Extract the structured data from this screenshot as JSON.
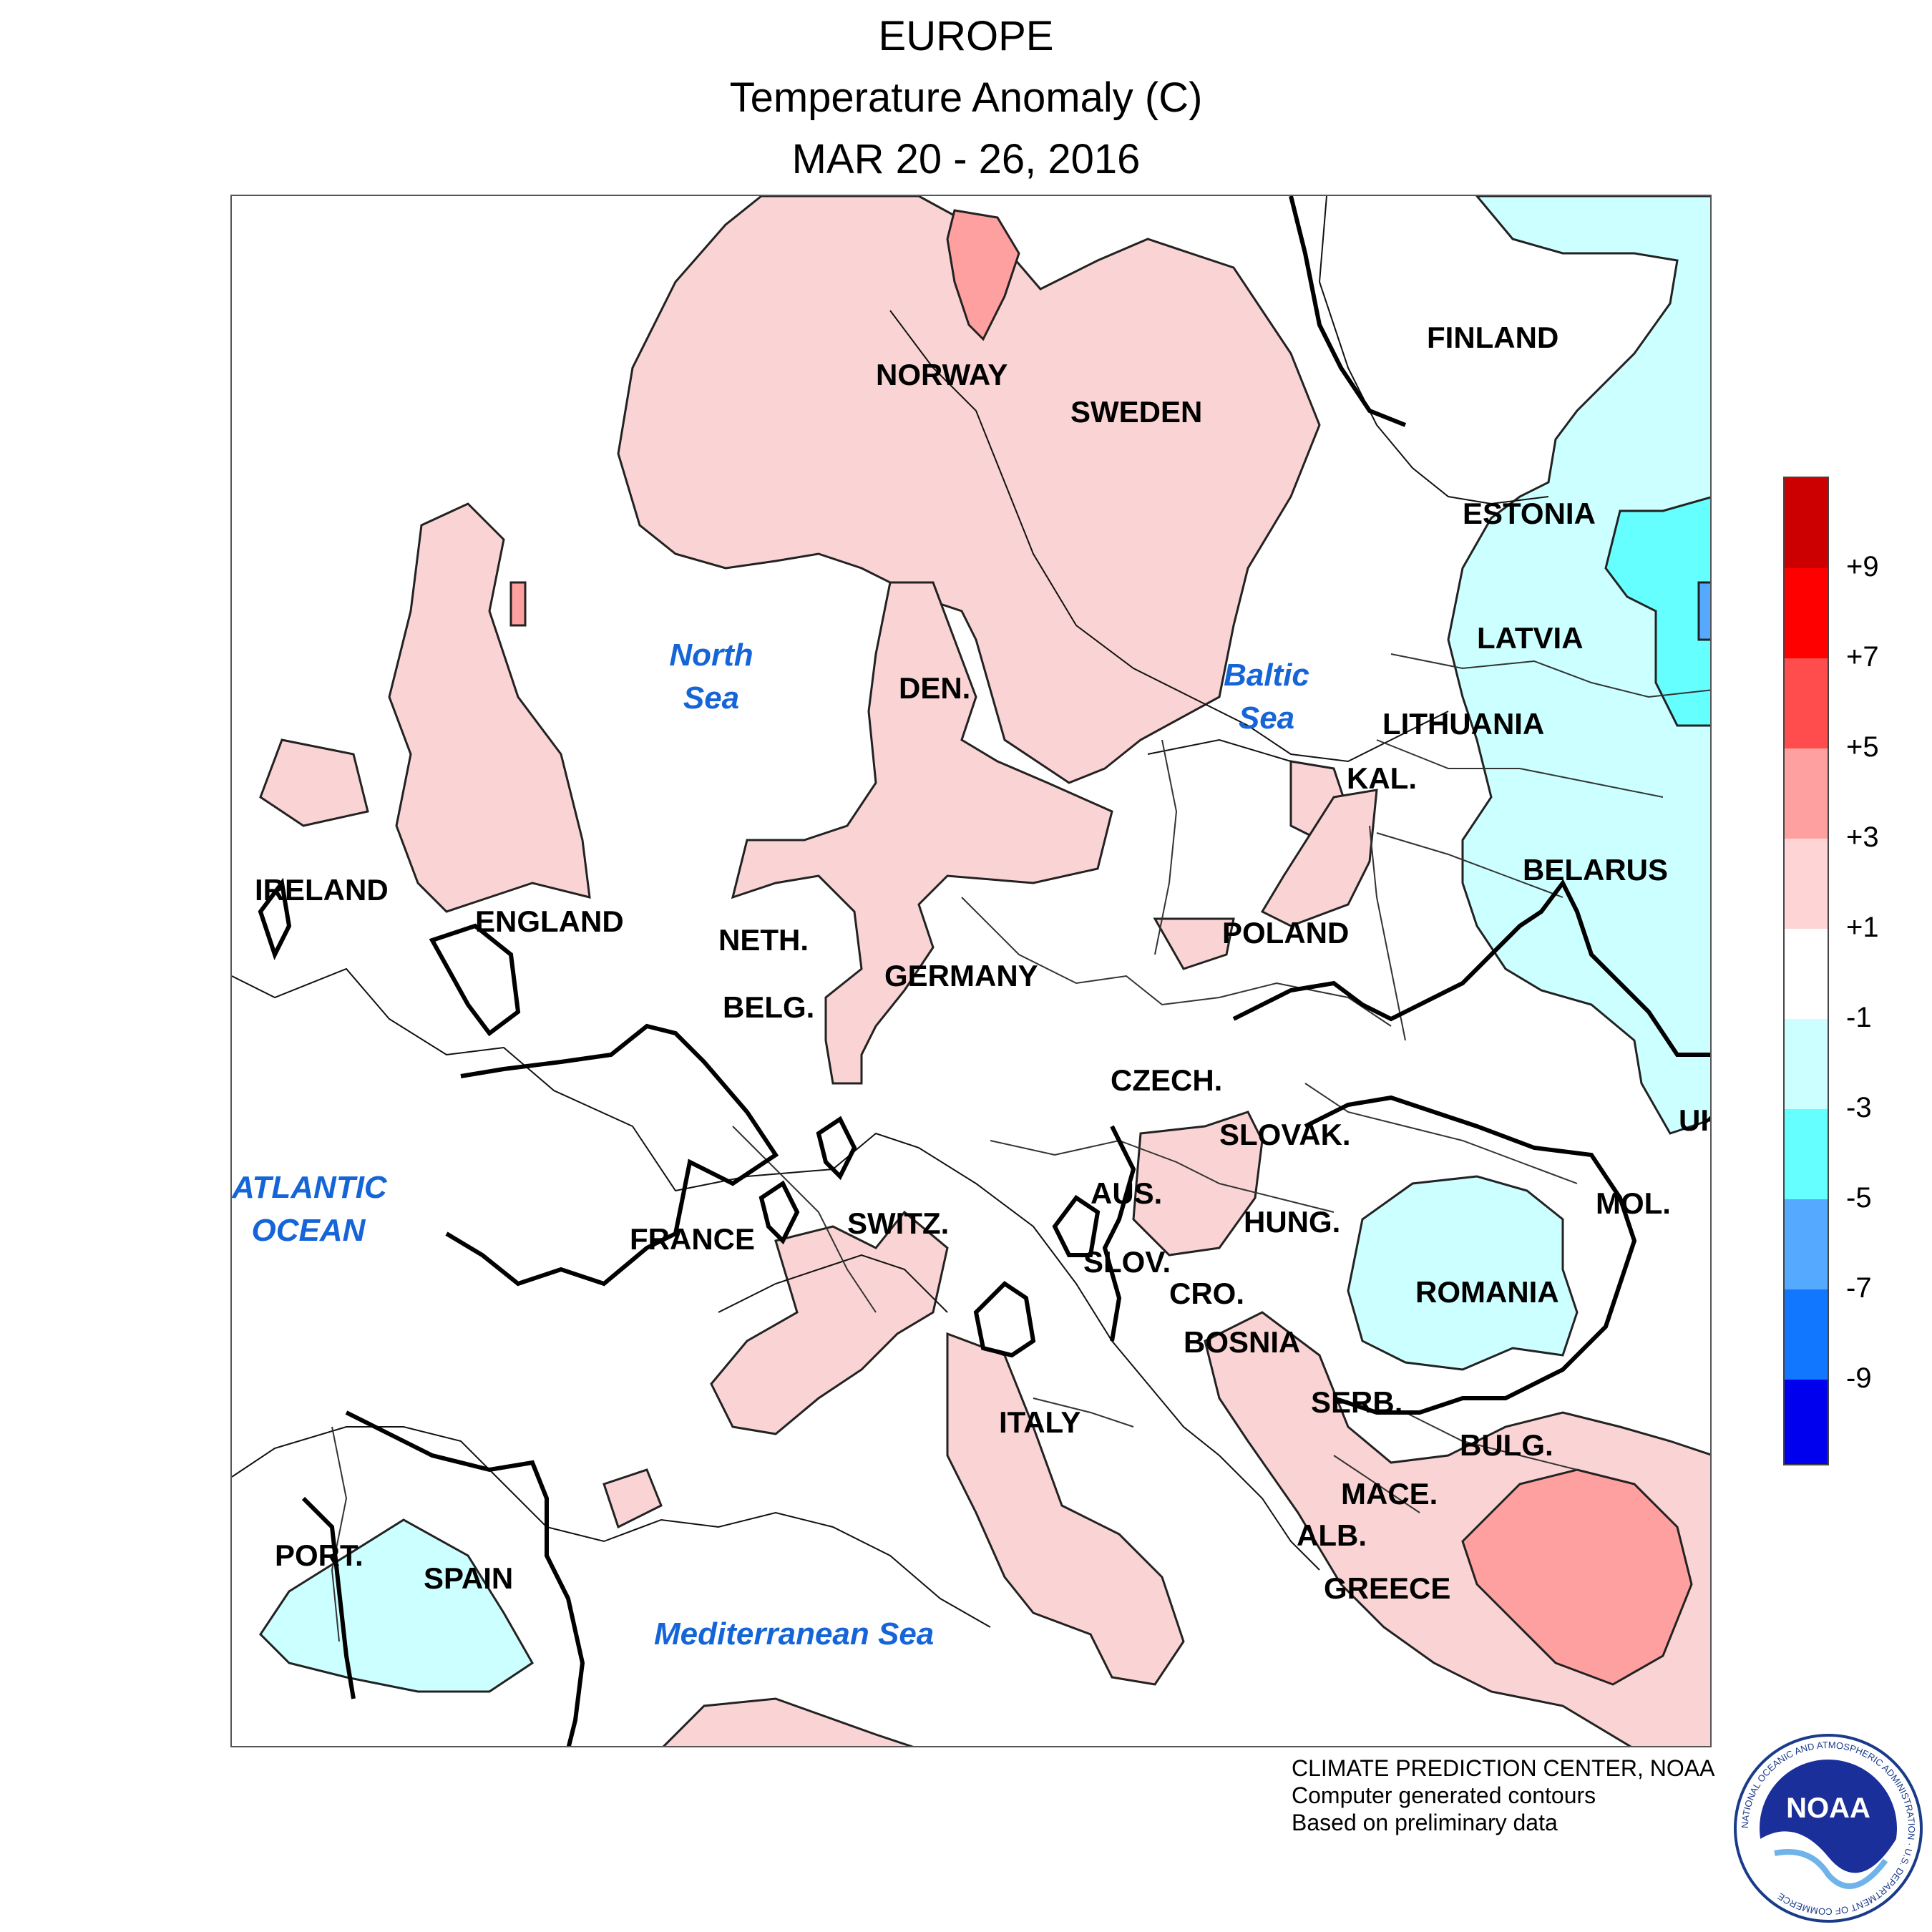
{
  "title": {
    "line1": "EUROPE",
    "line2": "Temperature Anomaly (C)",
    "line3": "MAR 20 - 26, 2016"
  },
  "map": {
    "countries": {
      "norway": "NORWAY",
      "sweden": "SWEDEN",
      "finland": "FINLAND",
      "estonia": "ESTONIA",
      "latvia": "LATVIA",
      "lithuania": "LITHUANIA",
      "kal": "KAL.",
      "belarus": "BELARUS",
      "poland": "POLAND",
      "den": "DEN.",
      "ireland": "IRELAND",
      "england": "ENGLAND",
      "neth": "NETH.",
      "belg": "BELG.",
      "germany": "GERMANY",
      "czech": "CZECH.",
      "slovak": "SLOVAK.",
      "uk": "UK",
      "aus": "AUS.",
      "hung": "HUNG.",
      "mol": "MOL.",
      "switz": "SWITZ.",
      "france": "FRANCE",
      "slov": "SLOV.",
      "cro": "CRO.",
      "romania": "ROMANIA",
      "bosnia": "BOSNIA",
      "serb": "SERB.",
      "italy": "ITALY",
      "bulg": "BULG.",
      "mace": "MACE.",
      "alb": "ALB.",
      "greece": "GREECE",
      "port": "PORT.",
      "spain": "SPAIN"
    },
    "seas": {
      "north_sea": [
        "North",
        "Sea"
      ],
      "baltic_sea": [
        "Baltic",
        "Sea"
      ],
      "atlantic_ocean": [
        "ATLANTIC",
        "OCEAN"
      ],
      "mediterranean_sea": "Mediterranean Sea"
    }
  },
  "legend": {
    "labels": [
      "+9",
      "+7",
      "+5",
      "+3",
      "+1",
      "-1",
      "-3",
      "-5",
      "-7",
      "-9"
    ],
    "colors": [
      "#cc0000",
      "#ff0000",
      "#ff4c4c",
      "#ffa0a0",
      "#ffd4d4",
      "#ffffff",
      "#ccffff",
      "#66ffff",
      "#55aaff",
      "#1177ff",
      "#0000ee"
    ]
  },
  "credits": {
    "line1": "CLIMATE PREDICTION CENTER, NOAA",
    "line2": "Computer generated contours",
    "line3": "Based on preliminary data"
  },
  "logo": {
    "text": "NOAA",
    "ring_text": "NATIONAL OCEANIC AND ATMOSPHERIC ADMINISTRATION · U.S. DEPARTMENT OF COMMERCE"
  }
}
